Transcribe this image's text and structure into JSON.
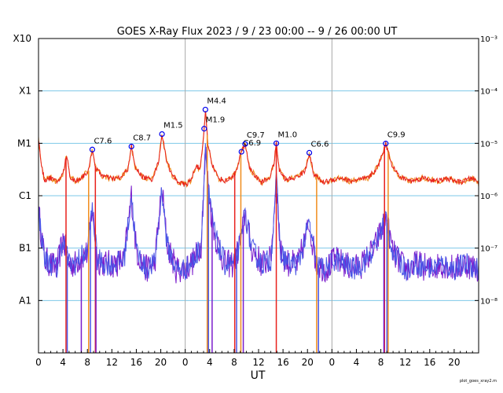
{
  "chart_data": {
    "type": "line",
    "title": "GOES X-Ray Flux   2023  /  9 / 23   00:00 --  9 / 26   00:00   UT",
    "xlabel": "UT",
    "footer": "plot_goes_xray2.m",
    "x_range_hours": [
      0,
      72
    ],
    "x_tick_labels": [
      "0",
      "4",
      "8",
      "12",
      "16",
      "20",
      "0",
      "4",
      "8",
      "12",
      "16",
      "20",
      "0",
      "4",
      "8",
      "12",
      "16",
      "20"
    ],
    "day_boundaries_hours": [
      24,
      48
    ],
    "y_scale": "log",
    "y_range_wm2": [
      1e-09,
      0.001
    ],
    "left_axis_labels": [
      {
        "label": "X10",
        "flux": 0.001
      },
      {
        "label": "X1",
        "flux": 0.0001
      },
      {
        "label": "M1",
        "flux": 1e-05
      },
      {
        "label": "C1",
        "flux": 1e-06
      },
      {
        "label": "B1",
        "flux": 1e-07
      },
      {
        "label": "A1",
        "flux": 1e-08
      }
    ],
    "right_axis_labels": [
      {
        "label": "10⁻³",
        "flux": 0.001
      },
      {
        "label": "10⁻⁴",
        "flux": 0.0001
      },
      {
        "label": "10⁻⁵",
        "flux": 1e-05
      },
      {
        "label": "10⁻⁶",
        "flux": 1e-06
      },
      {
        "label": "10⁻⁷",
        "flux": 1e-07
      },
      {
        "label": "10⁻⁸",
        "flux": 1e-08
      }
    ],
    "grid_lines_flux": [
      0.0001,
      1e-05,
      1e-06,
      1e-07,
      1e-08
    ],
    "colors": {
      "long_channel": "#e8201c",
      "long_channel_alt": "#f08c1c",
      "short_channel": "#4a56e6",
      "short_channel_alt": "#7a1ccc",
      "grid": "#7ec8e8",
      "day_line": "#a8a8a8",
      "marker": "#0000ee"
    },
    "flares": [
      {
        "label": "C7.6",
        "hour": 8.8,
        "flux": 7.6e-06
      },
      {
        "label": "C8.7",
        "hour": 15.2,
        "flux": 8.7e-06
      },
      {
        "label": "M1.5",
        "hour": 20.2,
        "flux": 1.5e-05
      },
      {
        "label": "M1.9",
        "hour": 27.1,
        "flux": 1.9e-05
      },
      {
        "label": "M4.4",
        "hour": 27.3,
        "flux": 4.4e-05
      },
      {
        "label": "C6.9",
        "hour": 33.2,
        "flux": 6.9e-06
      },
      {
        "label": "C9.7",
        "hour": 33.8,
        "flux": 9.7e-06
      },
      {
        "label": "M1.0",
        "hour": 38.9,
        "flux": 1e-05
      },
      {
        "label": "C6.6",
        "hour": 44.3,
        "flux": 6.6e-06
      },
      {
        "label": "C9.9",
        "hour": 56.8,
        "flux": 9.9e-06
      }
    ],
    "long_channel_anchors": [
      [
        0,
        1.2e-05
      ],
      [
        0.5,
        3.5e-06
      ],
      [
        1,
        2e-06
      ],
      [
        2,
        2.2e-06
      ],
      [
        3,
        1.8e-06
      ],
      [
        4,
        2.6e-06
      ],
      [
        4.6,
        6e-06
      ],
      [
        5.2,
        2.2e-06
      ],
      [
        6,
        1.9e-06
      ],
      [
        7,
        2.2e-06
      ],
      [
        8.2,
        3e-06
      ],
      [
        8.8,
        7.6e-06
      ],
      [
        9.4,
        3.2e-06
      ],
      [
        10.5,
        2.4e-06
      ],
      [
        12,
        2.1e-06
      ],
      [
        13.5,
        2.2e-06
      ],
      [
        14.6,
        3.2e-06
      ],
      [
        15.2,
        8.7e-06
      ],
      [
        15.8,
        3.5e-06
      ],
      [
        17,
        2.3e-06
      ],
      [
        18.5,
        2e-06
      ],
      [
        19.6,
        4.2e-06
      ],
      [
        20.2,
        1.5e-05
      ],
      [
        20.9,
        5e-06
      ],
      [
        21.8,
        2.5e-06
      ],
      [
        23,
        1.8e-06
      ],
      [
        24,
        1.6e-06
      ],
      [
        25,
        2e-06
      ],
      [
        25.8,
        4e-06
      ],
      [
        26.4,
        3e-06
      ],
      [
        26.8,
        7e-06
      ],
      [
        27.1,
        1.9e-05
      ],
      [
        27.3,
        4.4e-05
      ],
      [
        27.7,
        1e-05
      ],
      [
        28.4,
        4e-06
      ],
      [
        29.4,
        2.2e-06
      ],
      [
        30.5,
        1.9e-06
      ],
      [
        31.5,
        2.2e-06
      ],
      [
        32.4,
        3e-06
      ],
      [
        33.2,
        6.9e-06
      ],
      [
        33.8,
        9.7e-06
      ],
      [
        34.5,
        3.5e-06
      ],
      [
        35.5,
        2.3e-06
      ],
      [
        36.5,
        1.8e-06
      ],
      [
        37.8,
        2.2e-06
      ],
      [
        38.5,
        4e-06
      ],
      [
        38.9,
        1e-05
      ],
      [
        39.4,
        3e-06
      ],
      [
        40.5,
        2e-06
      ],
      [
        42,
        2.2e-06
      ],
      [
        43.6,
        2.9e-06
      ],
      [
        44.3,
        6.6e-06
      ],
      [
        45,
        2.6e-06
      ],
      [
        46.5,
        1.8e-06
      ],
      [
        48,
        2e-06
      ],
      [
        49.5,
        2.2e-06
      ],
      [
        51,
        1.9e-06
      ],
      [
        52.5,
        2e-06
      ],
      [
        54,
        2.2e-06
      ],
      [
        55.5,
        3.5e-06
      ],
      [
        56.8,
        9.9e-06
      ],
      [
        57.8,
        4e-06
      ],
      [
        59,
        2.3e-06
      ],
      [
        61,
        1.9e-06
      ],
      [
        63,
        2.2e-06
      ],
      [
        65,
        1.9e-06
      ],
      [
        67,
        2.1e-06
      ],
      [
        69,
        1.8e-06
      ],
      [
        71,
        2.2e-06
      ],
      [
        72,
        1.7e-06
      ]
    ],
    "short_channel_anchors": [
      [
        0,
        5e-07
      ],
      [
        1,
        6e-08
      ],
      [
        2,
        5e-08
      ],
      [
        3,
        4e-08
      ],
      [
        4,
        1.5e-07
      ],
      [
        5,
        5e-08
      ],
      [
        6,
        5e-08
      ],
      [
        7,
        7e-08
      ],
      [
        8,
        8e-08
      ],
      [
        8.8,
        6e-07
      ],
      [
        9.6,
        6e-08
      ],
      [
        11,
        5e-08
      ],
      [
        12.5,
        5e-08
      ],
      [
        14,
        6e-08
      ],
      [
        15.2,
        1e-06
      ],
      [
        16,
        9e-08
      ],
      [
        17.5,
        4e-08
      ],
      [
        19,
        5e-08
      ],
      [
        20.2,
        1.4e-06
      ],
      [
        21,
        1.2e-07
      ],
      [
        22.5,
        4e-08
      ],
      [
        24,
        4e-08
      ],
      [
        25.5,
        6e-08
      ],
      [
        26.6,
        1.2e-07
      ],
      [
        27.3,
        8e-06
      ],
      [
        28,
        7e-07
      ],
      [
        29,
        1.5e-07
      ],
      [
        30.5,
        5e-08
      ],
      [
        32,
        5e-08
      ],
      [
        33.2,
        1.5e-07
      ],
      [
        33.8,
        5e-07
      ],
      [
        34.8,
        1e-07
      ],
      [
        36.5,
        5e-08
      ],
      [
        38,
        6e-08
      ],
      [
        38.9,
        2e-06
      ],
      [
        39.6,
        8e-08
      ],
      [
        41,
        5e-08
      ],
      [
        42.5,
        5e-08
      ],
      [
        44.3,
        3e-07
      ],
      [
        45.4,
        5e-08
      ],
      [
        47,
        4e-08
      ],
      [
        48.5,
        6e-08
      ],
      [
        50,
        5e-08
      ],
      [
        51.5,
        4e-08
      ],
      [
        53,
        5e-08
      ],
      [
        55,
        1e-07
      ],
      [
        56.8,
        4e-07
      ],
      [
        58,
        8e-08
      ],
      [
        60,
        4e-08
      ],
      [
        62,
        5e-08
      ],
      [
        64,
        4e-08
      ],
      [
        66,
        5e-08
      ],
      [
        68,
        4e-08
      ],
      [
        70,
        5e-08
      ],
      [
        72,
        4e-08
      ]
    ],
    "dropouts_long_hours": [
      4.5,
      8.2,
      9.3,
      27.6,
      32.1,
      33.1,
      38.9,
      45.5,
      56.6,
      57.2
    ],
    "dropouts_short_hours": [
      4.7,
      7.0,
      8.5,
      9.4,
      27.8,
      28.4,
      32.4,
      33.5,
      45.8,
      56.5,
      57.0
    ]
  }
}
